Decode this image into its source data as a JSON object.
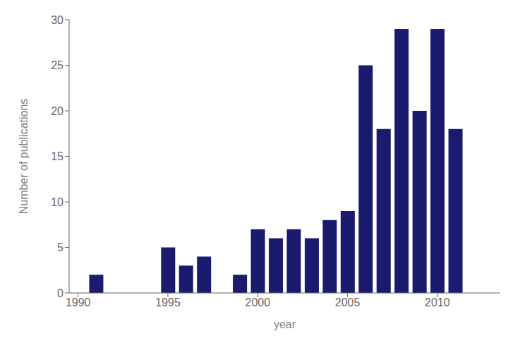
{
  "chart_data": {
    "type": "bar",
    "x": [
      1991,
      1992,
      1993,
      1994,
      1995,
      1996,
      1997,
      1998,
      1999,
      2000,
      2001,
      2002,
      2003,
      2004,
      2005,
      2006,
      2007,
      2008,
      2009,
      2010,
      2011
    ],
    "values": [
      2,
      0,
      0,
      0,
      5,
      3,
      4,
      0,
      2,
      7,
      6,
      7,
      6,
      8,
      9,
      25,
      18,
      29,
      20,
      29,
      18
    ],
    "color": "#1a1a6e",
    "xlabel": "year",
    "ylabel": "Number of publications",
    "xlim": [
      1989.5,
      2013.5
    ],
    "ylim": [
      0,
      30
    ],
    "xticks": [
      1990,
      1995,
      2000,
      2005,
      2010
    ],
    "yticks": [
      0,
      5,
      10,
      15,
      20,
      25,
      30
    ],
    "grid": false
  }
}
